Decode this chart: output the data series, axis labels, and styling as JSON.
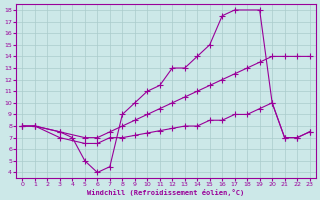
{
  "xlabel": "Windchill (Refroidissement éolien,°C)",
  "bg_color": "#cce8e8",
  "line_color": "#990099",
  "grid_color": "#aacccc",
  "xlim": [
    -0.5,
    23.5
  ],
  "ylim": [
    3.5,
    18.5
  ],
  "yticks": [
    4,
    5,
    6,
    7,
    8,
    9,
    10,
    11,
    12,
    13,
    14,
    15,
    16,
    17,
    18
  ],
  "xticks": [
    0,
    1,
    2,
    3,
    4,
    5,
    6,
    7,
    8,
    9,
    10,
    11,
    12,
    13,
    14,
    15,
    16,
    17,
    18,
    19,
    20,
    21,
    22,
    23
  ],
  "line1_x": [
    0,
    1,
    3,
    4,
    5,
    6,
    7,
    8,
    9,
    10,
    11,
    12,
    13,
    14,
    15,
    16,
    17,
    19,
    20,
    21,
    22,
    23
  ],
  "line1_y": [
    8,
    8,
    7.5,
    7,
    5,
    4,
    4.5,
    9,
    10,
    11,
    11.5,
    13,
    13,
    14,
    15,
    17.5,
    18,
    18,
    10,
    7,
    7,
    7.5
  ],
  "line2_x": [
    0,
    1,
    3,
    5,
    6,
    7,
    8,
    9,
    10,
    11,
    12,
    13,
    14,
    15,
    16,
    17,
    18,
    19,
    20,
    21,
    22,
    23
  ],
  "line2_y": [
    8,
    8,
    7.5,
    7,
    7,
    7.5,
    8,
    8.5,
    9,
    9.5,
    10,
    10.5,
    11,
    11.5,
    12,
    12.5,
    13,
    13.5,
    14,
    14,
    14,
    14
  ],
  "line3_x": [
    0,
    1,
    3,
    5,
    6,
    7,
    8,
    9,
    10,
    11,
    12,
    13,
    14,
    15,
    16,
    17,
    18,
    19,
    20,
    21,
    22,
    23
  ],
  "line3_y": [
    8,
    8,
    7,
    6.5,
    6.5,
    7,
    7,
    7.2,
    7.4,
    7.6,
    7.8,
    8,
    8,
    8.5,
    8.5,
    9,
    9,
    9.5,
    10,
    7,
    7,
    7.5
  ]
}
